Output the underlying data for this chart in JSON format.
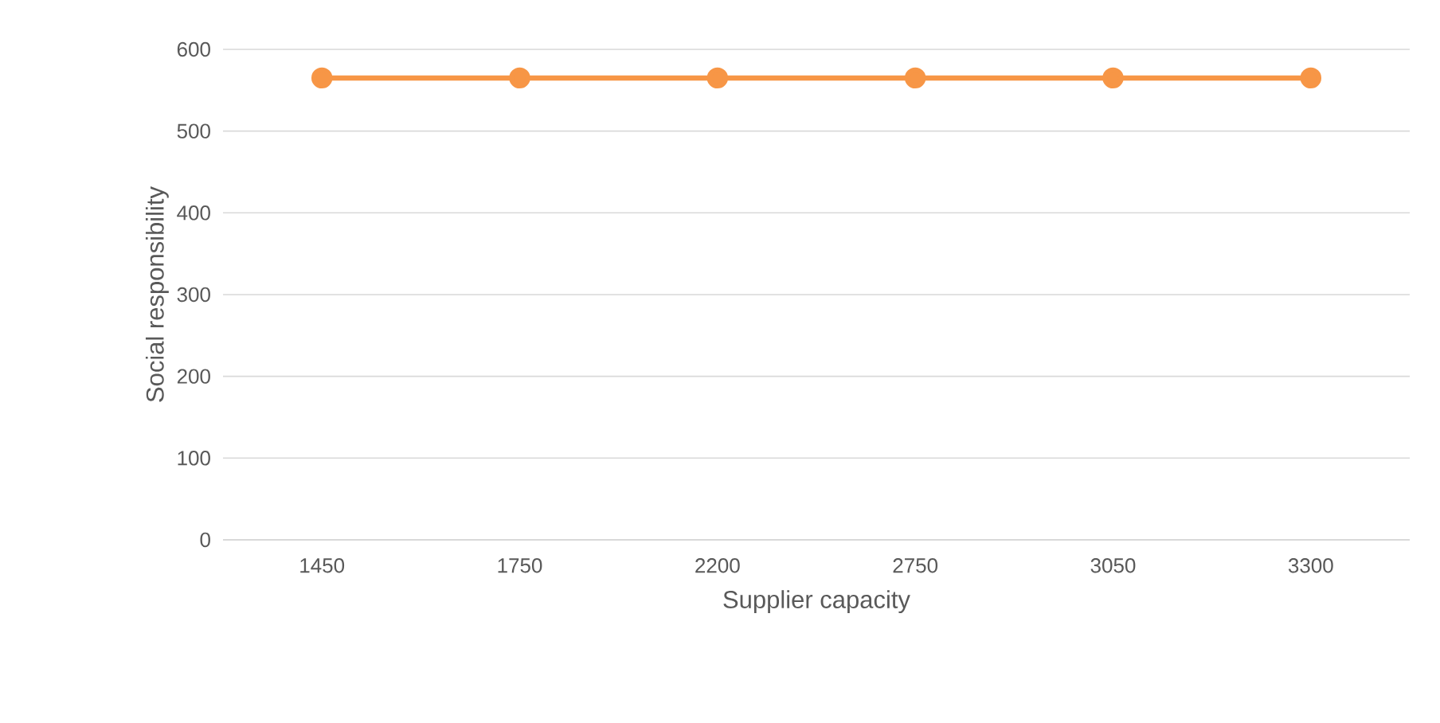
{
  "chart_data": {
    "type": "line",
    "xlabel": "Supplier capacity",
    "ylabel": "Social responsibility",
    "categories": [
      "1450",
      "1750",
      "2200",
      "2750",
      "3050",
      "3300"
    ],
    "series": [
      {
        "color": "#f79646",
        "values": [
          565,
          565,
          565,
          565,
          565,
          565
        ]
      }
    ],
    "ylim": [
      0,
      600
    ],
    "yticks": [
      0,
      100,
      200,
      300,
      400,
      500,
      600
    ],
    "grid": "y",
    "marker": "circle",
    "line_style": "solid"
  }
}
